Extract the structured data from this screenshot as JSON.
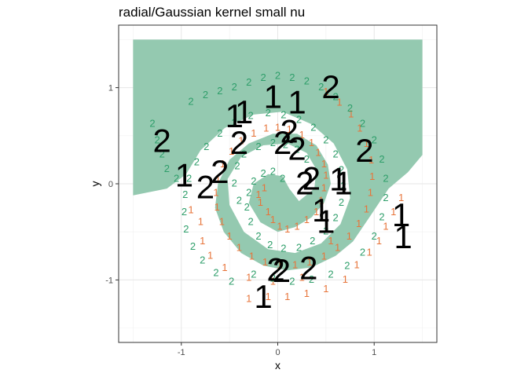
{
  "chart_data": {
    "type": "scatter",
    "title": "radial/Gaussian kernel small nu",
    "xlabel": "x",
    "ylabel": "y",
    "xlim": [
      -1.65,
      1.65
    ],
    "ylim": [
      -1.65,
      1.65
    ],
    "x_ticks": [
      -1,
      0,
      1
    ],
    "y_ticks": [
      -1,
      0,
      1
    ],
    "x_tick_labels": [
      "-1",
      "0",
      "1"
    ],
    "y_tick_labels": [
      "-1",
      "0",
      "1"
    ],
    "grid": true,
    "legend": "none",
    "colors": {
      "class1": "#E7743A",
      "class2": "#2E9E6A",
      "region": "#94C9B0",
      "big_label": "#000000"
    },
    "decision_region": {
      "label": "2",
      "description_polygon_data_units": [
        [
          -1.5,
          1.5
        ],
        [
          1.5,
          1.5
        ],
        [
          1.5,
          0.3
        ],
        [
          1.35,
          0.12
        ],
        [
          1.15,
          -0.05
        ],
        [
          0.95,
          -0.35
        ],
        [
          0.78,
          -0.6
        ],
        [
          0.6,
          -0.75
        ],
        [
          0.35,
          -0.87
        ],
        [
          0.1,
          -0.9
        ],
        [
          -0.15,
          -0.85
        ],
        [
          -0.38,
          -0.72
        ],
        [
          -0.56,
          -0.5
        ],
        [
          -0.65,
          -0.25
        ],
        [
          -0.62,
          0.0
        ],
        [
          -0.5,
          0.25
        ],
        [
          -0.3,
          0.42
        ],
        [
          -0.05,
          0.52
        ],
        [
          0.2,
          0.52
        ],
        [
          0.4,
          0.4
        ],
        [
          0.52,
          0.2
        ],
        [
          0.55,
          0.0
        ],
        [
          0.48,
          -0.2
        ],
        [
          0.35,
          -0.35
        ],
        [
          0.18,
          -0.45
        ],
        [
          0.0,
          -0.5
        ],
        [
          -0.18,
          -0.4
        ],
        [
          -0.3,
          -0.2
        ],
        [
          -0.25,
          0.0
        ],
        [
          -0.1,
          0.1
        ],
        [
          0.05,
          0.08
        ],
        [
          0.12,
          -0.05
        ],
        [
          0.22,
          -0.18
        ],
        [
          0.38,
          -0.05
        ],
        [
          0.4,
          0.15
        ],
        [
          0.3,
          0.32
        ],
        [
          0.1,
          0.42
        ],
        [
          -0.15,
          0.4
        ],
        [
          -0.38,
          0.28
        ],
        [
          -0.52,
          0.05
        ],
        [
          -0.5,
          -0.22
        ],
        [
          -0.35,
          -0.5
        ],
        [
          -0.1,
          -0.68
        ],
        [
          0.18,
          -0.72
        ],
        [
          0.45,
          -0.62
        ],
        [
          0.65,
          -0.42
        ],
        [
          0.75,
          -0.15
        ],
        [
          0.72,
          0.15
        ],
        [
          0.58,
          0.42
        ],
        [
          0.35,
          0.62
        ],
        [
          0.05,
          0.75
        ],
        [
          -0.25,
          0.72
        ],
        [
          -0.55,
          0.58
        ],
        [
          -0.8,
          0.35
        ],
        [
          -0.95,
          0.1
        ],
        [
          -1.15,
          -0.05
        ],
        [
          -1.5,
          -0.12
        ]
      ]
    },
    "series": [
      {
        "name": "1",
        "marker": "1",
        "points": [
          [
            -0.1,
            -0.3
          ],
          [
            -0.05,
            -0.38
          ],
          [
            0.02,
            -0.45
          ],
          [
            0.1,
            -0.48
          ],
          [
            0.2,
            -0.45
          ],
          [
            0.3,
            -0.38
          ],
          [
            0.4,
            -0.3
          ],
          [
            0.45,
            -0.18
          ],
          [
            0.48,
            -0.05
          ],
          [
            0.5,
            0.08
          ],
          [
            0.48,
            0.2
          ],
          [
            0.42,
            0.32
          ],
          [
            0.35,
            0.42
          ],
          [
            0.25,
            0.5
          ],
          [
            0.12,
            0.56
          ],
          [
            0.0,
            0.58
          ],
          [
            -0.12,
            0.57
          ],
          [
            -0.25,
            0.52
          ],
          [
            -0.38,
            0.44
          ],
          [
            -0.48,
            0.33
          ],
          [
            -0.57,
            0.2
          ],
          [
            -0.62,
            0.05
          ],
          [
            -0.64,
            -0.1
          ],
          [
            -0.63,
            -0.25
          ],
          [
            -0.58,
            -0.4
          ],
          [
            -0.5,
            -0.55
          ],
          [
            -0.4,
            -0.67
          ],
          [
            -0.27,
            -0.76
          ],
          [
            -0.13,
            -0.82
          ],
          [
            0.02,
            -0.85
          ],
          [
            0.18,
            -0.85
          ],
          [
            0.33,
            -0.82
          ],
          [
            0.48,
            -0.76
          ],
          [
            0.62,
            -0.67
          ],
          [
            0.74,
            -0.55
          ],
          [
            0.84,
            -0.42
          ],
          [
            0.92,
            -0.27
          ],
          [
            0.96,
            -0.1
          ],
          [
            0.98,
            0.07
          ],
          [
            0.97,
            0.24
          ],
          [
            0.92,
            0.41
          ],
          [
            0.85,
            0.57
          ],
          [
            0.76,
            0.72
          ],
          [
            0.64,
            0.84
          ],
          [
            0.5,
            0.95
          ],
          [
            -0.2,
            -0.12
          ],
          [
            -0.18,
            -0.2
          ],
          [
            -0.14,
            -0.05
          ],
          [
            0.55,
            -0.6
          ],
          [
            0.25,
            -0.98
          ],
          [
            -0.05,
            -1.02
          ],
          [
            -0.3,
            -0.98
          ],
          [
            -0.55,
            -0.88
          ],
          [
            -0.7,
            -0.75
          ],
          [
            -0.78,
            -0.6
          ],
          [
            -0.8,
            -0.4
          ],
          [
            -0.9,
            -0.28
          ],
          [
            0.82,
            -0.85
          ],
          [
            0.95,
            -0.72
          ],
          [
            1.05,
            -0.6
          ],
          [
            1.12,
            -0.45
          ],
          [
            1.2,
            -0.3
          ],
          [
            1.28,
            -0.15
          ],
          [
            0.7,
            -1.0
          ],
          [
            0.5,
            -1.1
          ],
          [
            0.3,
            -1.15
          ],
          [
            0.1,
            -1.18
          ],
          [
            -0.1,
            -1.18
          ],
          [
            -0.3,
            -1.2
          ]
        ]
      },
      {
        "name": "2",
        "marker": "2",
        "points": [
          [
            0.05,
            0.05
          ],
          [
            -0.05,
            0.12
          ],
          [
            -0.15,
            0.1
          ],
          [
            -0.25,
            0.02
          ],
          [
            -0.3,
            -0.1
          ],
          [
            -0.32,
            -0.25
          ],
          [
            -0.28,
            -0.4
          ],
          [
            -0.2,
            -0.55
          ],
          [
            -0.08,
            -0.64
          ],
          [
            0.06,
            -0.68
          ],
          [
            0.22,
            -0.67
          ],
          [
            0.36,
            -0.6
          ],
          [
            0.5,
            -0.5
          ],
          [
            0.6,
            -0.36
          ],
          [
            0.66,
            -0.2
          ],
          [
            0.68,
            -0.03
          ],
          [
            0.66,
            0.14
          ],
          [
            0.6,
            0.3
          ],
          [
            0.5,
            0.45
          ],
          [
            0.37,
            0.58
          ],
          [
            0.22,
            0.66
          ],
          [
            0.06,
            0.71
          ],
          [
            -0.1,
            0.73
          ],
          [
            -0.28,
            0.7
          ],
          [
            -0.45,
            0.63
          ],
          [
            -0.6,
            0.52
          ],
          [
            -0.74,
            0.38
          ],
          [
            -0.84,
            0.22
          ],
          [
            -0.92,
            0.05
          ],
          [
            -0.96,
            -0.12
          ],
          [
            -0.97,
            -0.3
          ],
          [
            -0.95,
            -0.48
          ],
          [
            -0.88,
            -0.66
          ],
          [
            -0.78,
            -0.8
          ],
          [
            -0.64,
            -0.93
          ],
          [
            -0.48,
            -1.02
          ],
          [
            -1.05,
            0.05
          ],
          [
            -1.15,
            0.15
          ],
          [
            -1.2,
            0.3
          ],
          [
            -1.25,
            0.45
          ],
          [
            -1.3,
            0.62
          ],
          [
            -0.9,
            0.85
          ],
          [
            -0.75,
            0.92
          ],
          [
            -0.6,
            0.96
          ],
          [
            -0.45,
            1.0
          ],
          [
            -0.3,
            1.05
          ],
          [
            -0.15,
            1.1
          ],
          [
            0.0,
            1.12
          ],
          [
            0.15,
            1.1
          ],
          [
            0.3,
            1.06
          ],
          [
            0.45,
            1.0
          ],
          [
            0.6,
            0.9
          ],
          [
            0.75,
            0.78
          ],
          [
            0.88,
            0.62
          ],
          [
            1.0,
            0.45
          ],
          [
            1.08,
            0.25
          ],
          [
            1.12,
            0.05
          ],
          [
            1.12,
            -0.15
          ],
          [
            1.08,
            -0.35
          ],
          [
            1.0,
            -0.55
          ],
          [
            0.88,
            -0.72
          ],
          [
            0.72,
            -0.86
          ],
          [
            0.55,
            -0.95
          ],
          [
            0.35,
            -1.0
          ],
          [
            0.15,
            -1.02
          ],
          [
            -0.05,
            -0.99
          ],
          [
            -0.25,
            -0.95
          ],
          [
            0.3,
            0.25
          ],
          [
            0.2,
            0.35
          ],
          [
            0.08,
            0.4
          ],
          [
            -0.05,
            0.42
          ],
          [
            -0.2,
            0.38
          ],
          [
            -0.35,
            0.3
          ],
          [
            -0.42,
            0.18
          ],
          [
            -0.45,
            0.0
          ],
          [
            -0.4,
            -0.18
          ]
        ]
      }
    ],
    "highlighted": [
      {
        "label": "2",
        "x": 0.55,
        "y": 0.98
      },
      {
        "label": "1",
        "x": -0.05,
        "y": 0.88
      },
      {
        "label": "1",
        "x": 0.2,
        "y": 0.82
      },
      {
        "label": "1",
        "x": -0.45,
        "y": 0.68
      },
      {
        "label": "1",
        "x": -0.35,
        "y": 0.72
      },
      {
        "label": "2",
        "x": 0.12,
        "y": 0.52
      },
      {
        "label": "2",
        "x": -1.2,
        "y": 0.42
      },
      {
        "label": "2",
        "x": -0.4,
        "y": 0.4
      },
      {
        "label": "2",
        "x": 0.05,
        "y": 0.4
      },
      {
        "label": "2",
        "x": 0.2,
        "y": 0.34
      },
      {
        "label": "2",
        "x": 0.9,
        "y": 0.32
      },
      {
        "label": "2",
        "x": -0.6,
        "y": 0.1
      },
      {
        "label": "2",
        "x": -0.75,
        "y": -0.06
      },
      {
        "label": "1",
        "x": -0.97,
        "y": 0.06
      },
      {
        "label": "2",
        "x": 0.35,
        "y": 0.03
      },
      {
        "label": "2",
        "x": 0.28,
        "y": -0.02
      },
      {
        "label": "1",
        "x": 0.68,
        "y": -0.02
      },
      {
        "label": "1",
        "x": 0.63,
        "y": 0.02
      },
      {
        "label": "1",
        "x": 0.45,
        "y": -0.3
      },
      {
        "label": "1",
        "x": 0.5,
        "y": -0.42
      },
      {
        "label": "1",
        "x": 1.28,
        "y": -0.35
      },
      {
        "label": "1",
        "x": 1.3,
        "y": -0.58
      },
      {
        "label": "2",
        "x": -0.02,
        "y": -0.92
      },
      {
        "label": "2",
        "x": 0.04,
        "y": -0.93
      },
      {
        "label": "2",
        "x": 0.32,
        "y": -0.9
      },
      {
        "label": "1",
        "x": -0.15,
        "y": -1.2
      }
    ]
  }
}
